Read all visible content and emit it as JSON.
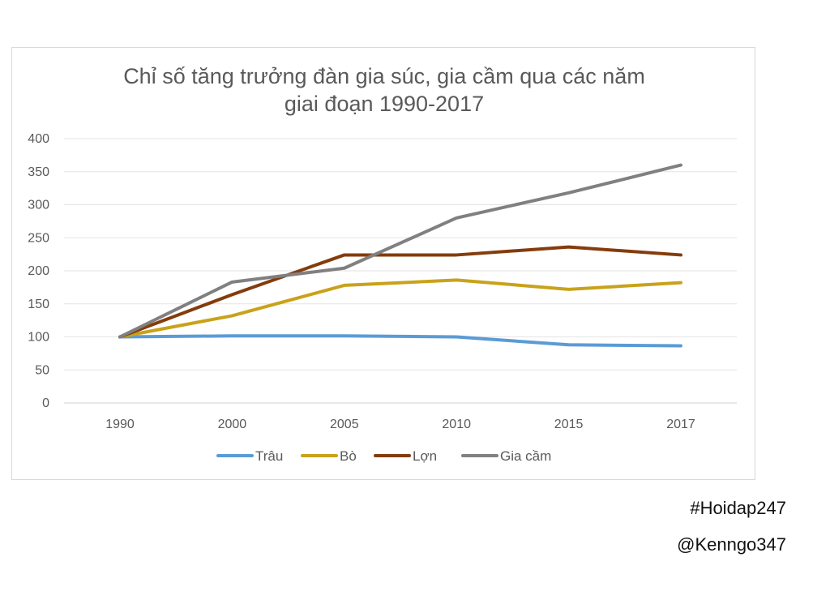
{
  "chart_data": {
    "type": "line",
    "title_lines": [
      "Chỉ số tăng trưởng đàn gia súc, gia cầm qua các năm",
      "giai đoạn 1990-2017"
    ],
    "categories": [
      "1990",
      "2000",
      "2005",
      "2010",
      "2015",
      "2017"
    ],
    "ylim": [
      0,
      400
    ],
    "yticks": [
      0,
      50,
      100,
      150,
      200,
      250,
      300,
      350,
      400
    ],
    "grid": true,
    "legend_position": "bottom",
    "series": [
      {
        "name": "Trâu",
        "color": "#5b9bd5",
        "values": [
          100,
          101.5,
          101.5,
          100,
          88,
          86.5
        ]
      },
      {
        "name": "Bò",
        "color": "#c9a21a",
        "values": [
          100,
          132,
          178,
          186,
          172,
          182
        ]
      },
      {
        "name": "Lợn",
        "color": "#843c0c",
        "values": [
          100,
          164,
          224,
          224,
          236,
          224
        ]
      },
      {
        "name": "Gia cầm",
        "color": "#808080",
        "values": [
          100,
          183,
          204,
          280,
          318,
          360
        ]
      }
    ]
  },
  "watermarks": [
    "#Hoidap247",
    "@Kenngo347"
  ]
}
